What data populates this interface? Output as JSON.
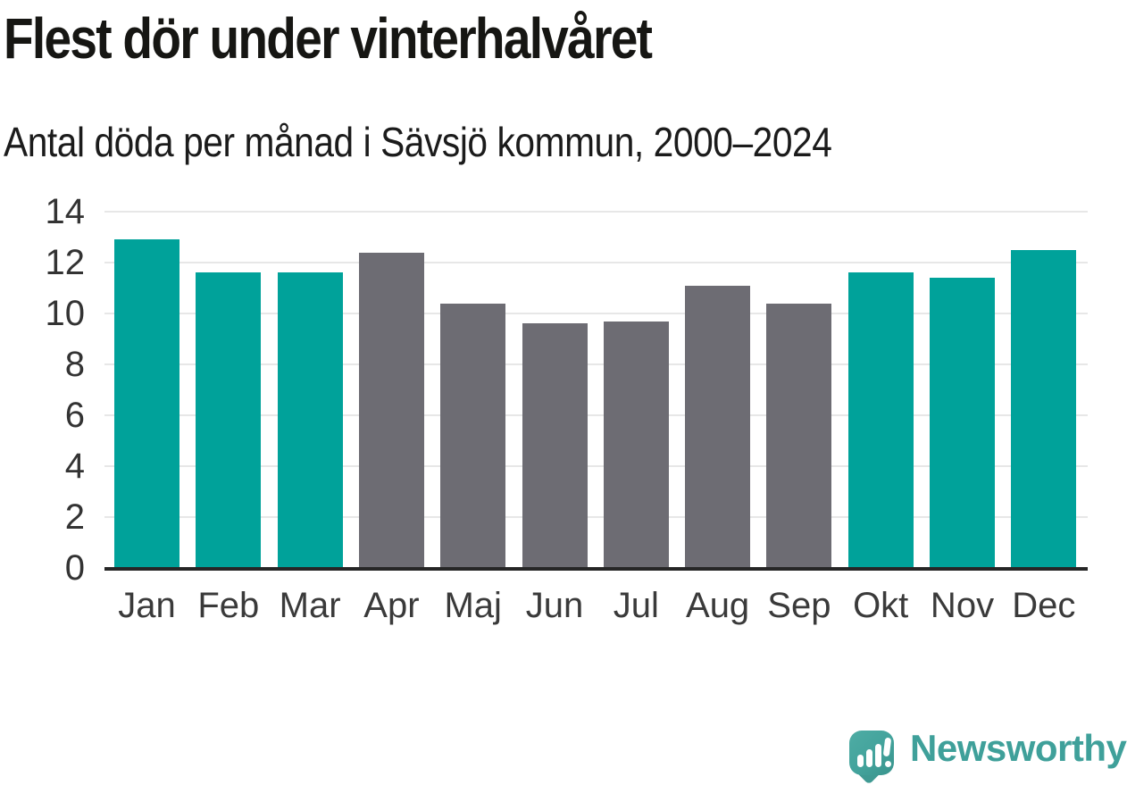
{
  "header": {
    "title": "Flest dör under vinterhalvåret",
    "subtitle": "Antal döda per månad i Sävsjö kommun, 2000–2024"
  },
  "footer": {
    "brand_name": "Newsworthy",
    "brand_icon": "newsworthy-speech-bubble-bar-chart-icon"
  },
  "chart_data": {
    "type": "bar",
    "title": "Flest dör under vinterhalvåret",
    "subtitle": "Antal döda per månad i Sävsjö kommun, 2000–2024",
    "categories": [
      "Jan",
      "Feb",
      "Mar",
      "Apr",
      "Maj",
      "Jun",
      "Jul",
      "Aug",
      "Sep",
      "Okt",
      "Nov",
      "Dec"
    ],
    "values": [
      12.9,
      11.6,
      11.6,
      12.4,
      10.4,
      9.6,
      9.7,
      11.1,
      10.4,
      11.6,
      11.4,
      12.5
    ],
    "bar_color_keys": [
      "teal",
      "teal",
      "teal",
      "gray",
      "gray",
      "gray",
      "gray",
      "gray",
      "gray",
      "teal",
      "teal",
      "teal"
    ],
    "xlabel": "",
    "ylabel": "",
    "ylim": [
      0,
      14
    ],
    "yticks": [
      0,
      2,
      4,
      6,
      8,
      10,
      12,
      14
    ],
    "grid": "horizontal",
    "legend": "none",
    "colors": {
      "teal": "#00A29A",
      "gray": "#6D6C73",
      "gridline": "#E7E7E7",
      "axis": "#262626"
    }
  }
}
